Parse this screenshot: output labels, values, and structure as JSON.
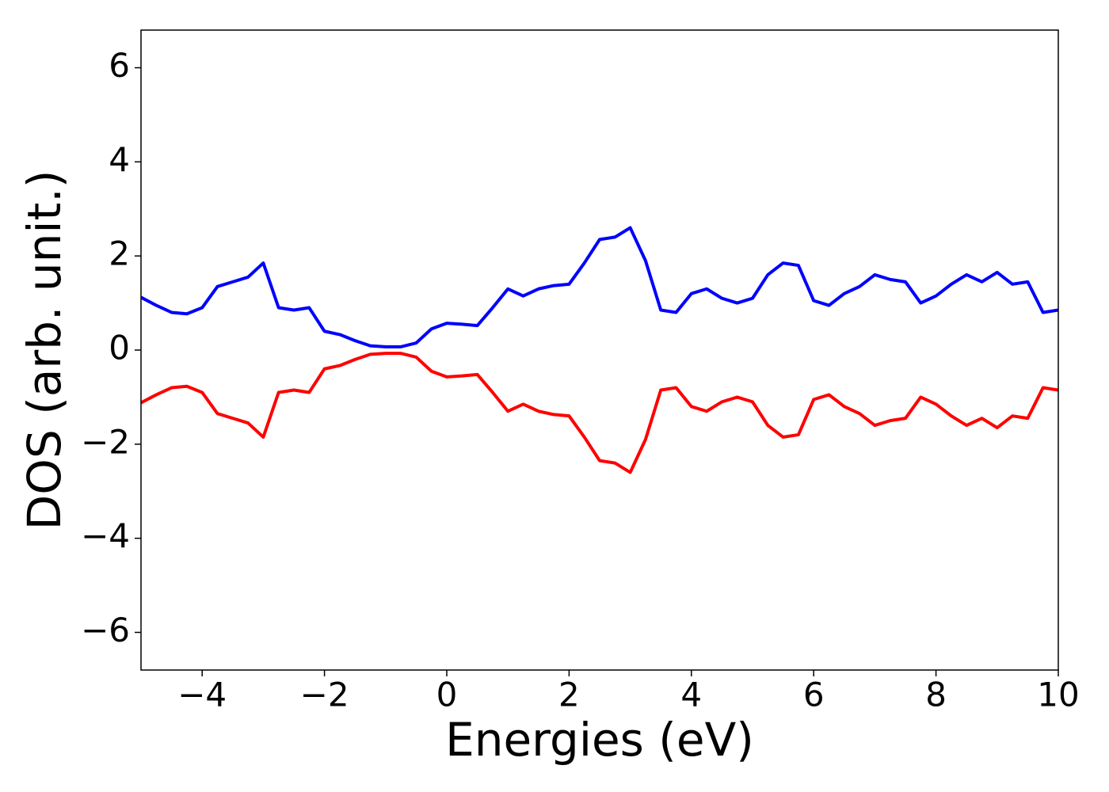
{
  "chart_data": {
    "type": "line",
    "xlabel": "Energies (eV)",
    "ylabel": "DOS (arb. unit.)",
    "x": [
      -5,
      -4.75,
      -4.5,
      -4.25,
      -4,
      -3.75,
      -3.5,
      -3.25,
      -3,
      -2.75,
      -2.5,
      -2.25,
      -2,
      -1.75,
      -1.5,
      -1.25,
      -1,
      -0.75,
      -0.5,
      -0.25,
      0,
      0.25,
      0.5,
      0.75,
      1,
      1.25,
      1.5,
      1.75,
      2,
      2.25,
      2.5,
      2.75,
      3,
      3.25,
      3.5,
      3.75,
      4,
      4.25,
      4.5,
      4.75,
      5,
      5.25,
      5.5,
      5.75,
      6,
      6.25,
      6.5,
      6.75,
      7,
      7.25,
      7.5,
      7.75,
      8,
      8.25,
      8.5,
      8.75,
      9,
      9.25,
      9.5,
      9.75,
      10
    ],
    "series": [
      {
        "color": "#0000ff",
        "values": [
          1.12,
          0.95,
          0.8,
          0.77,
          0.9,
          1.35,
          1.45,
          1.55,
          1.85,
          0.9,
          0.85,
          0.9,
          0.4,
          0.33,
          0.2,
          0.09,
          0.07,
          0.07,
          0.15,
          0.45,
          0.57,
          0.55,
          0.52,
          0.9,
          1.3,
          1.15,
          1.3,
          1.37,
          1.4,
          1.85,
          2.35,
          2.4,
          2.6,
          1.9,
          0.85,
          0.8,
          1.2,
          1.3,
          1.1,
          1.0,
          1.1,
          1.6,
          1.85,
          1.8,
          1.05,
          0.95,
          1.2,
          1.35,
          1.6,
          1.5,
          1.45,
          1.0,
          1.15,
          1.4,
          1.6,
          1.45,
          1.65,
          1.4,
          1.45,
          0.8,
          0.85
        ]
      },
      {
        "color": "#ff0000",
        "values": [
          -1.12,
          -0.95,
          -0.8,
          -0.77,
          -0.9,
          -1.35,
          -1.45,
          -1.55,
          -1.85,
          -0.9,
          -0.85,
          -0.9,
          -0.4,
          -0.33,
          -0.2,
          -0.09,
          -0.07,
          -0.07,
          -0.15,
          -0.45,
          -0.57,
          -0.55,
          -0.52,
          -0.9,
          -1.3,
          -1.15,
          -1.3,
          -1.37,
          -1.4,
          -1.85,
          -2.35,
          -2.4,
          -2.6,
          -1.9,
          -0.85,
          -0.8,
          -1.2,
          -1.3,
          -1.1,
          -1.0,
          -1.1,
          -1.6,
          -1.85,
          -1.8,
          -1.05,
          -0.95,
          -1.2,
          -1.35,
          -1.6,
          -1.5,
          -1.45,
          -1.0,
          -1.15,
          -1.4,
          -1.6,
          -1.45,
          -1.65,
          -1.4,
          -1.45,
          -0.8,
          -0.85
        ]
      }
    ],
    "xlim": [
      -5,
      10
    ],
    "ylim": [
      -6.8,
      6.8
    ],
    "xticks": [
      {
        "value": -4,
        "label": "−4"
      },
      {
        "value": -2,
        "label": "−2"
      },
      0,
      2,
      4,
      6,
      8,
      10
    ],
    "yticks": [
      {
        "value": -6,
        "label": "−6"
      },
      {
        "value": -4,
        "label": "−4"
      },
      {
        "value": -2,
        "label": "−2"
      },
      0,
      2,
      4,
      6
    ],
    "grid": false
  }
}
